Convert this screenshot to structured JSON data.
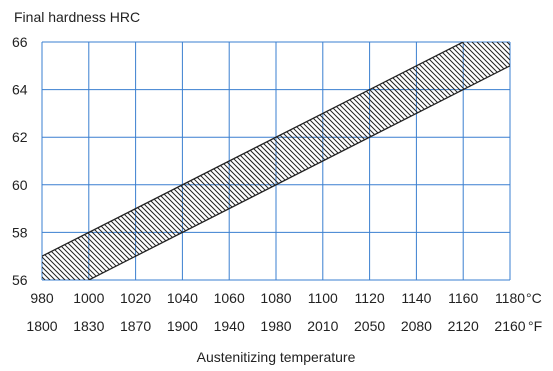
{
  "chart_data": {
    "type": "area",
    "ylabel": "Final hardness HRC",
    "xlabel": "Austenitizing temperature",
    "x_unit_c": "°C",
    "x_unit_f": "°F",
    "x_ticks_c": [
      "980",
      "1000",
      "1020",
      "1040",
      "1060",
      "1080",
      "1100",
      "1120",
      "1140",
      "1160",
      "1180"
    ],
    "x_ticks_f": [
      "1800",
      "1830",
      "1870",
      "1900",
      "1940",
      "1980",
      "2010",
      "2050",
      "2080",
      "2120",
      "2160"
    ],
    "y_ticks": [
      "56",
      "58",
      "60",
      "62",
      "64",
      "66"
    ],
    "xlim": [
      980,
      1180
    ],
    "ylim": [
      56,
      66
    ],
    "grid": true,
    "colors": {
      "grid": "#3a7fd0",
      "band": "#222222",
      "text": "#222222"
    },
    "series": [
      {
        "x": [
          980,
          1160
        ],
        "y": [
          57.0,
          66.0
        ]
      },
      {
        "x": [
          980,
          1180
        ],
        "y": [
          55.0,
          65.0
        ]
      }
    ]
  }
}
